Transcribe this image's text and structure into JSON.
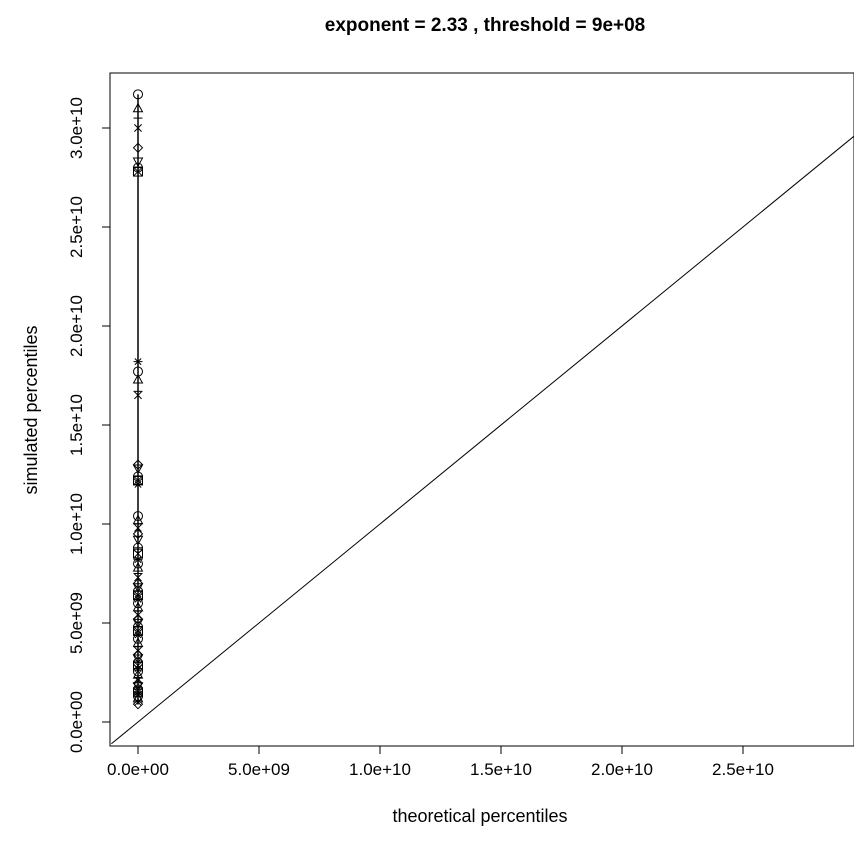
{
  "chart_data": {
    "type": "scatter",
    "title": "exponent =  2.33 , threshold =  9e+08",
    "xlabel": "theoretical percentiles",
    "ylabel": "simulated percentiles",
    "xlim": [
      -1200000000.0,
      30000000000.0
    ],
    "ylim": [
      -1100000000.0,
      32200000000.0
    ],
    "xticks": [
      0,
      5000000000.0,
      10000000000.0,
      15000000000.0,
      20000000000.0,
      25000000000.0
    ],
    "xtick_labels": [
      "0.0e+00",
      "5.0e+09",
      "1.0e+10",
      "1.5e+10",
      "2.0e+10",
      "2.5e+10"
    ],
    "yticks": [
      0,
      5000000000.0,
      10000000000.0,
      15000000000.0,
      20000000000.0,
      25000000000.0,
      30000000000.0
    ],
    "ytick_labels": [
      "0.0e+00",
      "5.0e+09",
      "1.0e+10",
      "1.5e+10",
      "2.0e+10",
      "2.5e+10",
      "3.0e+10"
    ],
    "reference_line": {
      "type": "y=x"
    },
    "grid": false,
    "series": [
      {
        "marker": "mixed",
        "x": 0,
        "y_range": [
          900000000.0,
          31700000000.0
        ],
        "y": [
          31700000000,
          31000000000,
          30500000000,
          30000000000,
          29000000000,
          28300000000,
          28000000000,
          27800000000,
          18200000000,
          17700000000,
          17300000000,
          16700000000,
          16500000000,
          13000000000,
          12800000000,
          12400000000,
          12200000000,
          12000000000,
          10400000000,
          10200000000,
          10000000000,
          9800000000,
          9500000000,
          9200000000,
          8800000000,
          8500000000,
          8200000000,
          8000000000,
          7800000000,
          7500000000,
          7300000000,
          7000000000,
          6800000000,
          6600000000,
          6400000000,
          6200000000,
          6000000000,
          5800000000,
          5600000000,
          5400000000,
          5200000000,
          5000000000,
          4800000000,
          4600000000,
          4400000000,
          4200000000,
          4000000000,
          3800000000,
          3600000000,
          3400000000,
          3200000000,
          3000000000,
          2850000000,
          2700000000,
          2550000000,
          2400000000,
          2250000000,
          2100000000,
          1950000000,
          1800000000,
          1650000000,
          1500000000,
          1400000000,
          1300000000,
          1200000000,
          1100000000,
          1000000000,
          900000000
        ]
      }
    ]
  }
}
